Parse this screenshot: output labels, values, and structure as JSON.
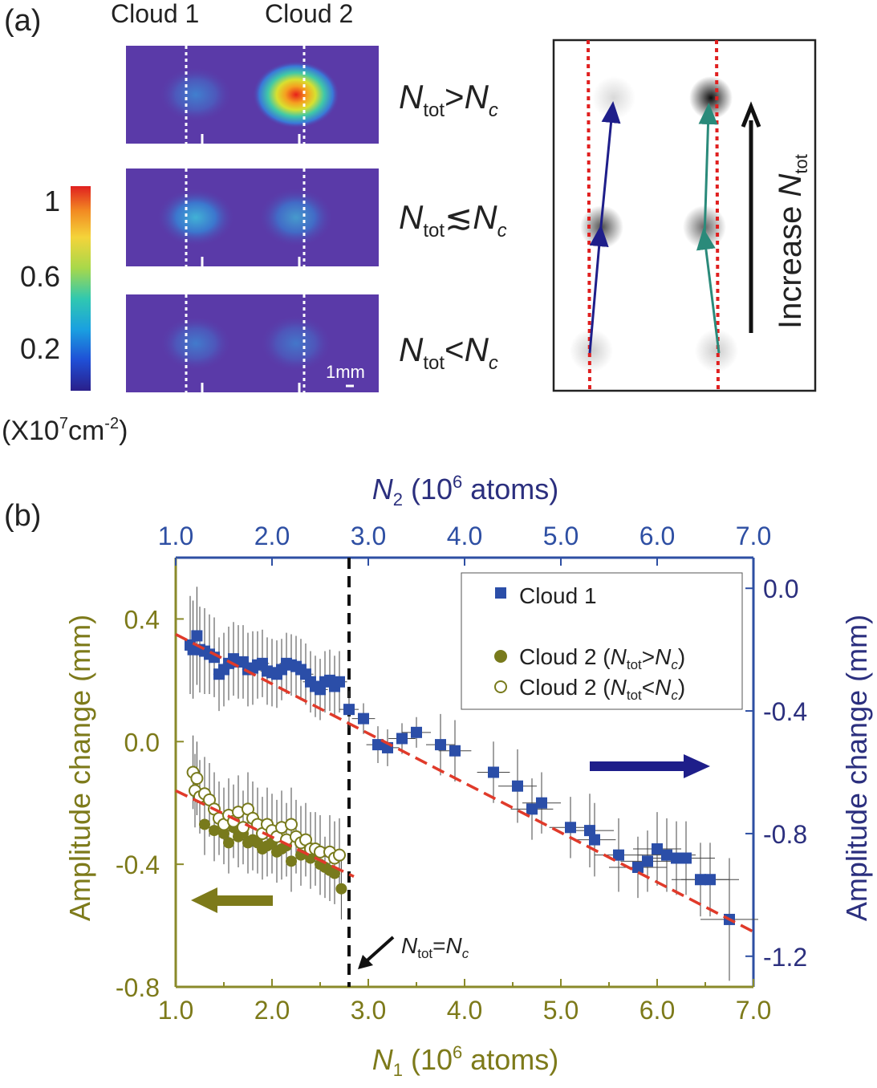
{
  "panel_a": {
    "label": "(a)",
    "cloud1_label": "Cloud 1",
    "cloud2_label": "Cloud 2",
    "colorbar": {
      "ticks": [
        "1",
        "0.6",
        "0.2"
      ],
      "unit_base": "(X10",
      "unit_exp1": "7",
      "unit_mid": "cm",
      "unit_exp2": "-2",
      "unit_end": ")"
    },
    "rows": [
      {
        "N": "N",
        "sub": "tot",
        "rel": ">",
        "Nc": "N",
        "csub": "c",
        "cloud1_peak": 0.3,
        "cloud2_peak": 1.0
      },
      {
        "N": "N",
        "sub": "tot",
        "rel": "≲",
        "Nc": "N",
        "csub": "c",
        "cloud1_peak": 0.45,
        "cloud2_peak": 0.4
      },
      {
        "N": "N",
        "sub": "tot",
        "rel": "<",
        "Nc": "N",
        "csub": "c",
        "cloud1_peak": 0.25,
        "cloud2_peak": 0.25
      }
    ],
    "scale_bar": "1mm",
    "schematic": {
      "arrow_label": "Increase ",
      "arrow_label_N": "N",
      "arrow_label_sub": "tot",
      "left_column_shading": [
        0.15,
        0.7,
        0.2
      ],
      "right_column_shading": [
        0.95,
        0.6,
        0.2
      ]
    }
  },
  "colors": {
    "olive": "#7d7a1a",
    "navy": "#2b2f7e",
    "blue_axis": "#2e4fa3",
    "marker_blue": "#2b4ea8",
    "marker_olive": "#787a1c",
    "fit_red": "#e03a2a",
    "cyan_arrow": "#2a8a7a",
    "frame_olive": "#8a8a2a"
  },
  "chart_data": {
    "type": "scatter",
    "label": "(b)",
    "xlabel_main": "N",
    "xlabel_sub": "1",
    "xlabel_rest": " (10",
    "xlabel_exp": "6",
    "xlabel_end": " atoms)",
    "x2label_main": "N",
    "x2label_sub": "2",
    "x2label_rest": " (10",
    "x2label_exp": "6",
    "x2label_end": " atoms)",
    "ylabel_left": "Amplitude change (mm)",
    "ylabel_right": "Amplitude change (mm)",
    "xlim": [
      1.0,
      7.0
    ],
    "ylim_left": [
      -0.8,
      0.6
    ],
    "ylim_right": [
      -1.3,
      0.1
    ],
    "x_ticks": [
      "1.0",
      "2.0",
      "3.0",
      "4.0",
      "5.0",
      "6.0",
      "7.0"
    ],
    "x2_ticks": [
      "1.0",
      "2.0",
      "3.0",
      "4.0",
      "5.0",
      "6.0",
      "7.0"
    ],
    "y_left_ticks": [
      "0.4",
      "0.0",
      "-0.4",
      "-0.8"
    ],
    "y_right_ticks": [
      "0.0",
      "-0.4",
      "-0.8",
      "-1.2"
    ],
    "vline_x": 2.8,
    "vline_label_N": "N",
    "vline_label_sub": "tot",
    "vline_label_eq": "=",
    "vline_label_Nc": "N",
    "vline_label_csub": "c",
    "legend": [
      {
        "marker": "square",
        "text": "Cloud 1"
      },
      {
        "marker": "filled-circle",
        "text": "Cloud 2 (",
        "N": "N",
        "sub": "tot",
        "rel": ">",
        "Nc": "N",
        "csub": "c",
        "end": ")"
      },
      {
        "marker": "open-circle",
        "text": "Cloud 2 (",
        "N": "N",
        "sub": "tot",
        "rel": "<",
        "Nc": "N",
        "csub": "c",
        "end": ")"
      }
    ],
    "series": [
      {
        "name": "Cloud 1",
        "axis": "right",
        "x": [
          1.15,
          1.18,
          1.22,
          1.25,
          1.3,
          1.35,
          1.4,
          1.45,
          1.5,
          1.55,
          1.6,
          1.65,
          1.7,
          1.75,
          1.8,
          1.85,
          1.9,
          1.95,
          2.0,
          2.05,
          2.1,
          2.15,
          2.2,
          2.25,
          2.3,
          2.35,
          2.4,
          2.45,
          2.5,
          2.55,
          2.6,
          2.65,
          2.7,
          2.8,
          2.95,
          3.1,
          3.2,
          3.35,
          3.5,
          3.75,
          3.9,
          4.3,
          4.55,
          4.7,
          4.8,
          5.1,
          5.3,
          5.35,
          5.6,
          5.8,
          5.9,
          6.0,
          6.1,
          6.2,
          6.3,
          6.45,
          6.55,
          6.75
        ],
        "y": [
          -0.185,
          -0.2,
          -0.155,
          -0.2,
          -0.205,
          -0.215,
          -0.225,
          -0.28,
          -0.265,
          -0.245,
          -0.23,
          -0.24,
          -0.24,
          -0.265,
          -0.26,
          -0.25,
          -0.245,
          -0.27,
          -0.275,
          -0.28,
          -0.265,
          -0.245,
          -0.25,
          -0.255,
          -0.265,
          -0.28,
          -0.305,
          -0.32,
          -0.33,
          -0.305,
          -0.3,
          -0.32,
          -0.305,
          -0.395,
          -0.425,
          -0.51,
          -0.52,
          -0.49,
          -0.47,
          -0.51,
          -0.53,
          -0.6,
          -0.645,
          -0.72,
          -0.7,
          -0.78,
          -0.79,
          -0.82,
          -0.87,
          -0.91,
          -0.89,
          -0.85,
          -0.87,
          -0.88,
          -0.88,
          -0.95,
          -0.95,
          -1.08
        ],
        "xerr": [
          0.05,
          0.05,
          0.05,
          0.05,
          0.05,
          0.05,
          0.05,
          0.06,
          0.06,
          0.06,
          0.06,
          0.06,
          0.06,
          0.06,
          0.06,
          0.06,
          0.07,
          0.07,
          0.07,
          0.07,
          0.07,
          0.07,
          0.07,
          0.07,
          0.08,
          0.08,
          0.08,
          0.08,
          0.08,
          0.08,
          0.08,
          0.08,
          0.08,
          0.1,
          0.12,
          0.12,
          0.12,
          0.14,
          0.15,
          0.15,
          0.17,
          0.17,
          0.2,
          0.22,
          0.2,
          0.22,
          0.25,
          0.22,
          0.25,
          0.3,
          0.28,
          0.25,
          0.3,
          0.3,
          0.3,
          0.3,
          0.3,
          0.3
        ],
        "yerr": [
          0.16,
          0.16,
          0.16,
          0.14,
          0.14,
          0.13,
          0.13,
          0.12,
          0.12,
          0.12,
          0.12,
          0.12,
          0.12,
          0.12,
          0.12,
          0.11,
          0.11,
          0.11,
          0.11,
          0.11,
          0.1,
          0.1,
          0.1,
          0.1,
          0.1,
          0.1,
          0.1,
          0.1,
          0.1,
          0.1,
          0.1,
          0.1,
          0.1,
          0.06,
          0.05,
          0.06,
          0.06,
          0.05,
          0.05,
          0.1,
          0.1,
          0.1,
          0.12,
          0.1,
          0.1,
          0.1,
          0.12,
          0.12,
          0.12,
          0.1,
          0.1,
          0.12,
          0.12,
          0.12,
          0.12,
          0.12,
          0.12,
          0.2
        ]
      },
      {
        "name": "Cloud 2 (Ntot>Nc)",
        "axis": "left",
        "x": [
          1.3,
          1.4,
          1.5,
          1.55,
          1.6,
          1.65,
          1.7,
          1.75,
          1.8,
          1.85,
          1.9,
          1.95,
          2.0,
          2.05,
          2.1,
          2.15,
          2.2,
          2.3,
          2.4,
          2.5,
          2.55,
          2.6,
          2.65,
          2.72
        ],
        "y": [
          -0.27,
          -0.29,
          -0.3,
          -0.33,
          -0.28,
          -0.31,
          -0.3,
          -0.33,
          -0.32,
          -0.33,
          -0.35,
          -0.34,
          -0.33,
          -0.36,
          -0.35,
          -0.34,
          -0.39,
          -0.37,
          -0.38,
          -0.4,
          -0.41,
          -0.42,
          -0.43,
          -0.48
        ],
        "yerr": [
          0.1,
          0.1,
          0.1,
          0.1,
          0.1,
          0.1,
          0.1,
          0.1,
          0.1,
          0.1,
          0.1,
          0.1,
          0.1,
          0.1,
          0.1,
          0.1,
          0.1,
          0.1,
          0.1,
          0.1,
          0.1,
          0.1,
          0.1,
          0.1
        ]
      },
      {
        "name": "Cloud 2 (Ntot<Nc)",
        "axis": "left",
        "x": [
          1.18,
          1.2,
          1.22,
          1.25,
          1.3,
          1.35,
          1.4,
          1.45,
          1.5,
          1.55,
          1.6,
          1.65,
          1.7,
          1.75,
          1.8,
          1.85,
          1.9,
          1.95,
          2.0,
          2.05,
          2.1,
          2.15,
          2.2,
          2.25,
          2.3,
          2.35,
          2.4,
          2.45,
          2.5,
          2.6,
          2.65,
          2.7
        ],
        "y": [
          -0.1,
          -0.16,
          -0.12,
          -0.18,
          -0.17,
          -0.19,
          -0.22,
          -0.25,
          -0.27,
          -0.24,
          -0.26,
          -0.23,
          -0.28,
          -0.22,
          -0.25,
          -0.27,
          -0.3,
          -0.27,
          -0.29,
          -0.31,
          -0.28,
          -0.32,
          -0.27,
          -0.31,
          -0.33,
          -0.32,
          -0.35,
          -0.35,
          -0.36,
          -0.36,
          -0.38,
          -0.37
        ],
        "yerr": [
          0.12,
          0.12,
          0.12,
          0.12,
          0.12,
          0.12,
          0.12,
          0.12,
          0.12,
          0.12,
          0.12,
          0.12,
          0.12,
          0.12,
          0.12,
          0.12,
          0.12,
          0.12,
          0.12,
          0.12,
          0.12,
          0.12,
          0.12,
          0.12,
          0.12,
          0.12,
          0.12,
          0.12,
          0.12,
          0.12,
          0.12,
          0.12
        ]
      }
    ],
    "fits": [
      {
        "name": "Cloud 1 fit",
        "axis": "right",
        "x": [
          1.0,
          7.0
        ],
        "y": [
          -0.15,
          -1.12
        ]
      },
      {
        "name": "Cloud 2 fit",
        "axis": "left",
        "x": [
          1.0,
          2.85
        ],
        "y": [
          -0.16,
          -0.44
        ]
      }
    ]
  }
}
